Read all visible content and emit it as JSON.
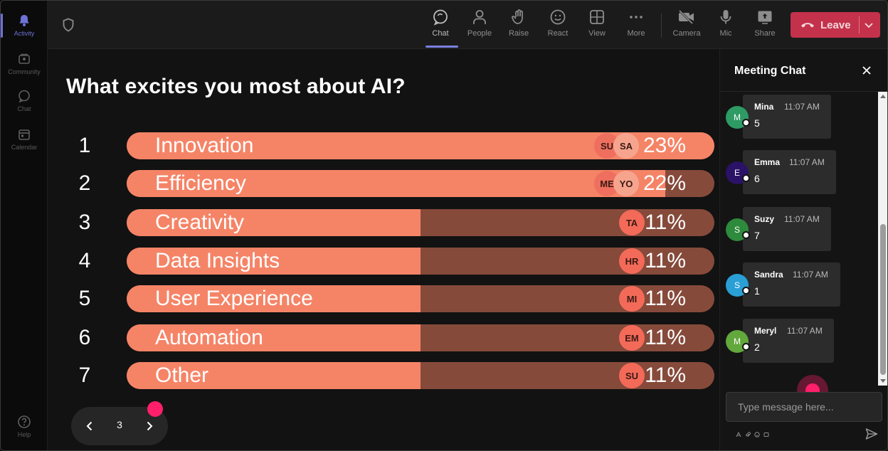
{
  "rail": {
    "items": [
      {
        "label": "Activity",
        "icon": "bell-icon",
        "active": true
      },
      {
        "label": "Community",
        "icon": "community-icon"
      },
      {
        "label": "Chat",
        "icon": "chat-icon"
      },
      {
        "label": "Calendar",
        "icon": "calendar-icon"
      }
    ],
    "help_label": "Help"
  },
  "toolbar": {
    "buttons": [
      {
        "label": "Chat",
        "icon": "chat-icon",
        "active": true
      },
      {
        "label": "People",
        "icon": "people-icon"
      },
      {
        "label": "Raise",
        "icon": "hand-icon"
      },
      {
        "label": "React",
        "icon": "smiley-icon"
      },
      {
        "label": "View",
        "icon": "grid-icon"
      },
      {
        "label": "More",
        "icon": "more-dots-icon"
      },
      {
        "label": "Camera",
        "icon": "camera-off-icon"
      },
      {
        "label": "Mic",
        "icon": "mic-icon"
      },
      {
        "label": "Share",
        "icon": "share-icon"
      }
    ],
    "leave_label": "Leave"
  },
  "poll": {
    "question": "What excites you most about AI?",
    "options": [
      {
        "num": "1",
        "label": "Innovation",
        "percent": "23%",
        "fill": 1.0,
        "avatars": [
          "SU",
          "SA"
        ]
      },
      {
        "num": "2",
        "label": "Efficiency",
        "percent": "22%",
        "fill": 0.917,
        "avatars": [
          "ME",
          "YO"
        ]
      },
      {
        "num": "3",
        "label": "Creativity",
        "percent": "11%",
        "fill": 0.5,
        "avatars": [
          "TA"
        ]
      },
      {
        "num": "4",
        "label": "Data Insights",
        "percent": "11%",
        "fill": 0.5,
        "avatars": [
          "HR"
        ]
      },
      {
        "num": "5",
        "label": "User Experience",
        "percent": "11%",
        "fill": 0.5,
        "avatars": [
          "MI"
        ]
      },
      {
        "num": "6",
        "label": "Automation",
        "percent": "11%",
        "fill": 0.5,
        "avatars": [
          "EM"
        ]
      },
      {
        "num": "7",
        "label": "Other",
        "percent": "11%",
        "fill": 0.5,
        "avatars": [
          "SU"
        ]
      }
    ],
    "colors": {
      "fill": "#f58467",
      "track": "#864a3b"
    }
  },
  "pager": {
    "page": "3"
  },
  "chat": {
    "title": "Meeting Chat",
    "messages": [
      {
        "initial": "M",
        "name": "Mina",
        "time": "11:07 AM",
        "text": "5",
        "color": "#2e9a64"
      },
      {
        "initial": "E",
        "name": "Emma",
        "time": "11:07 AM",
        "text": "6",
        "color": "#2a1266"
      },
      {
        "initial": "S",
        "name": "Suzy",
        "time": "11:07 AM",
        "text": "7",
        "color": "#2e8a3c"
      },
      {
        "initial": "S",
        "name": "Sandra",
        "time": "11:07 AM",
        "text": "1",
        "color": "#2a9fd6"
      },
      {
        "initial": "M",
        "name": "Meryl",
        "time": "11:07 AM",
        "text": "2",
        "color": "#62a83c"
      }
    ],
    "compose_placeholder": "Type message here..."
  }
}
